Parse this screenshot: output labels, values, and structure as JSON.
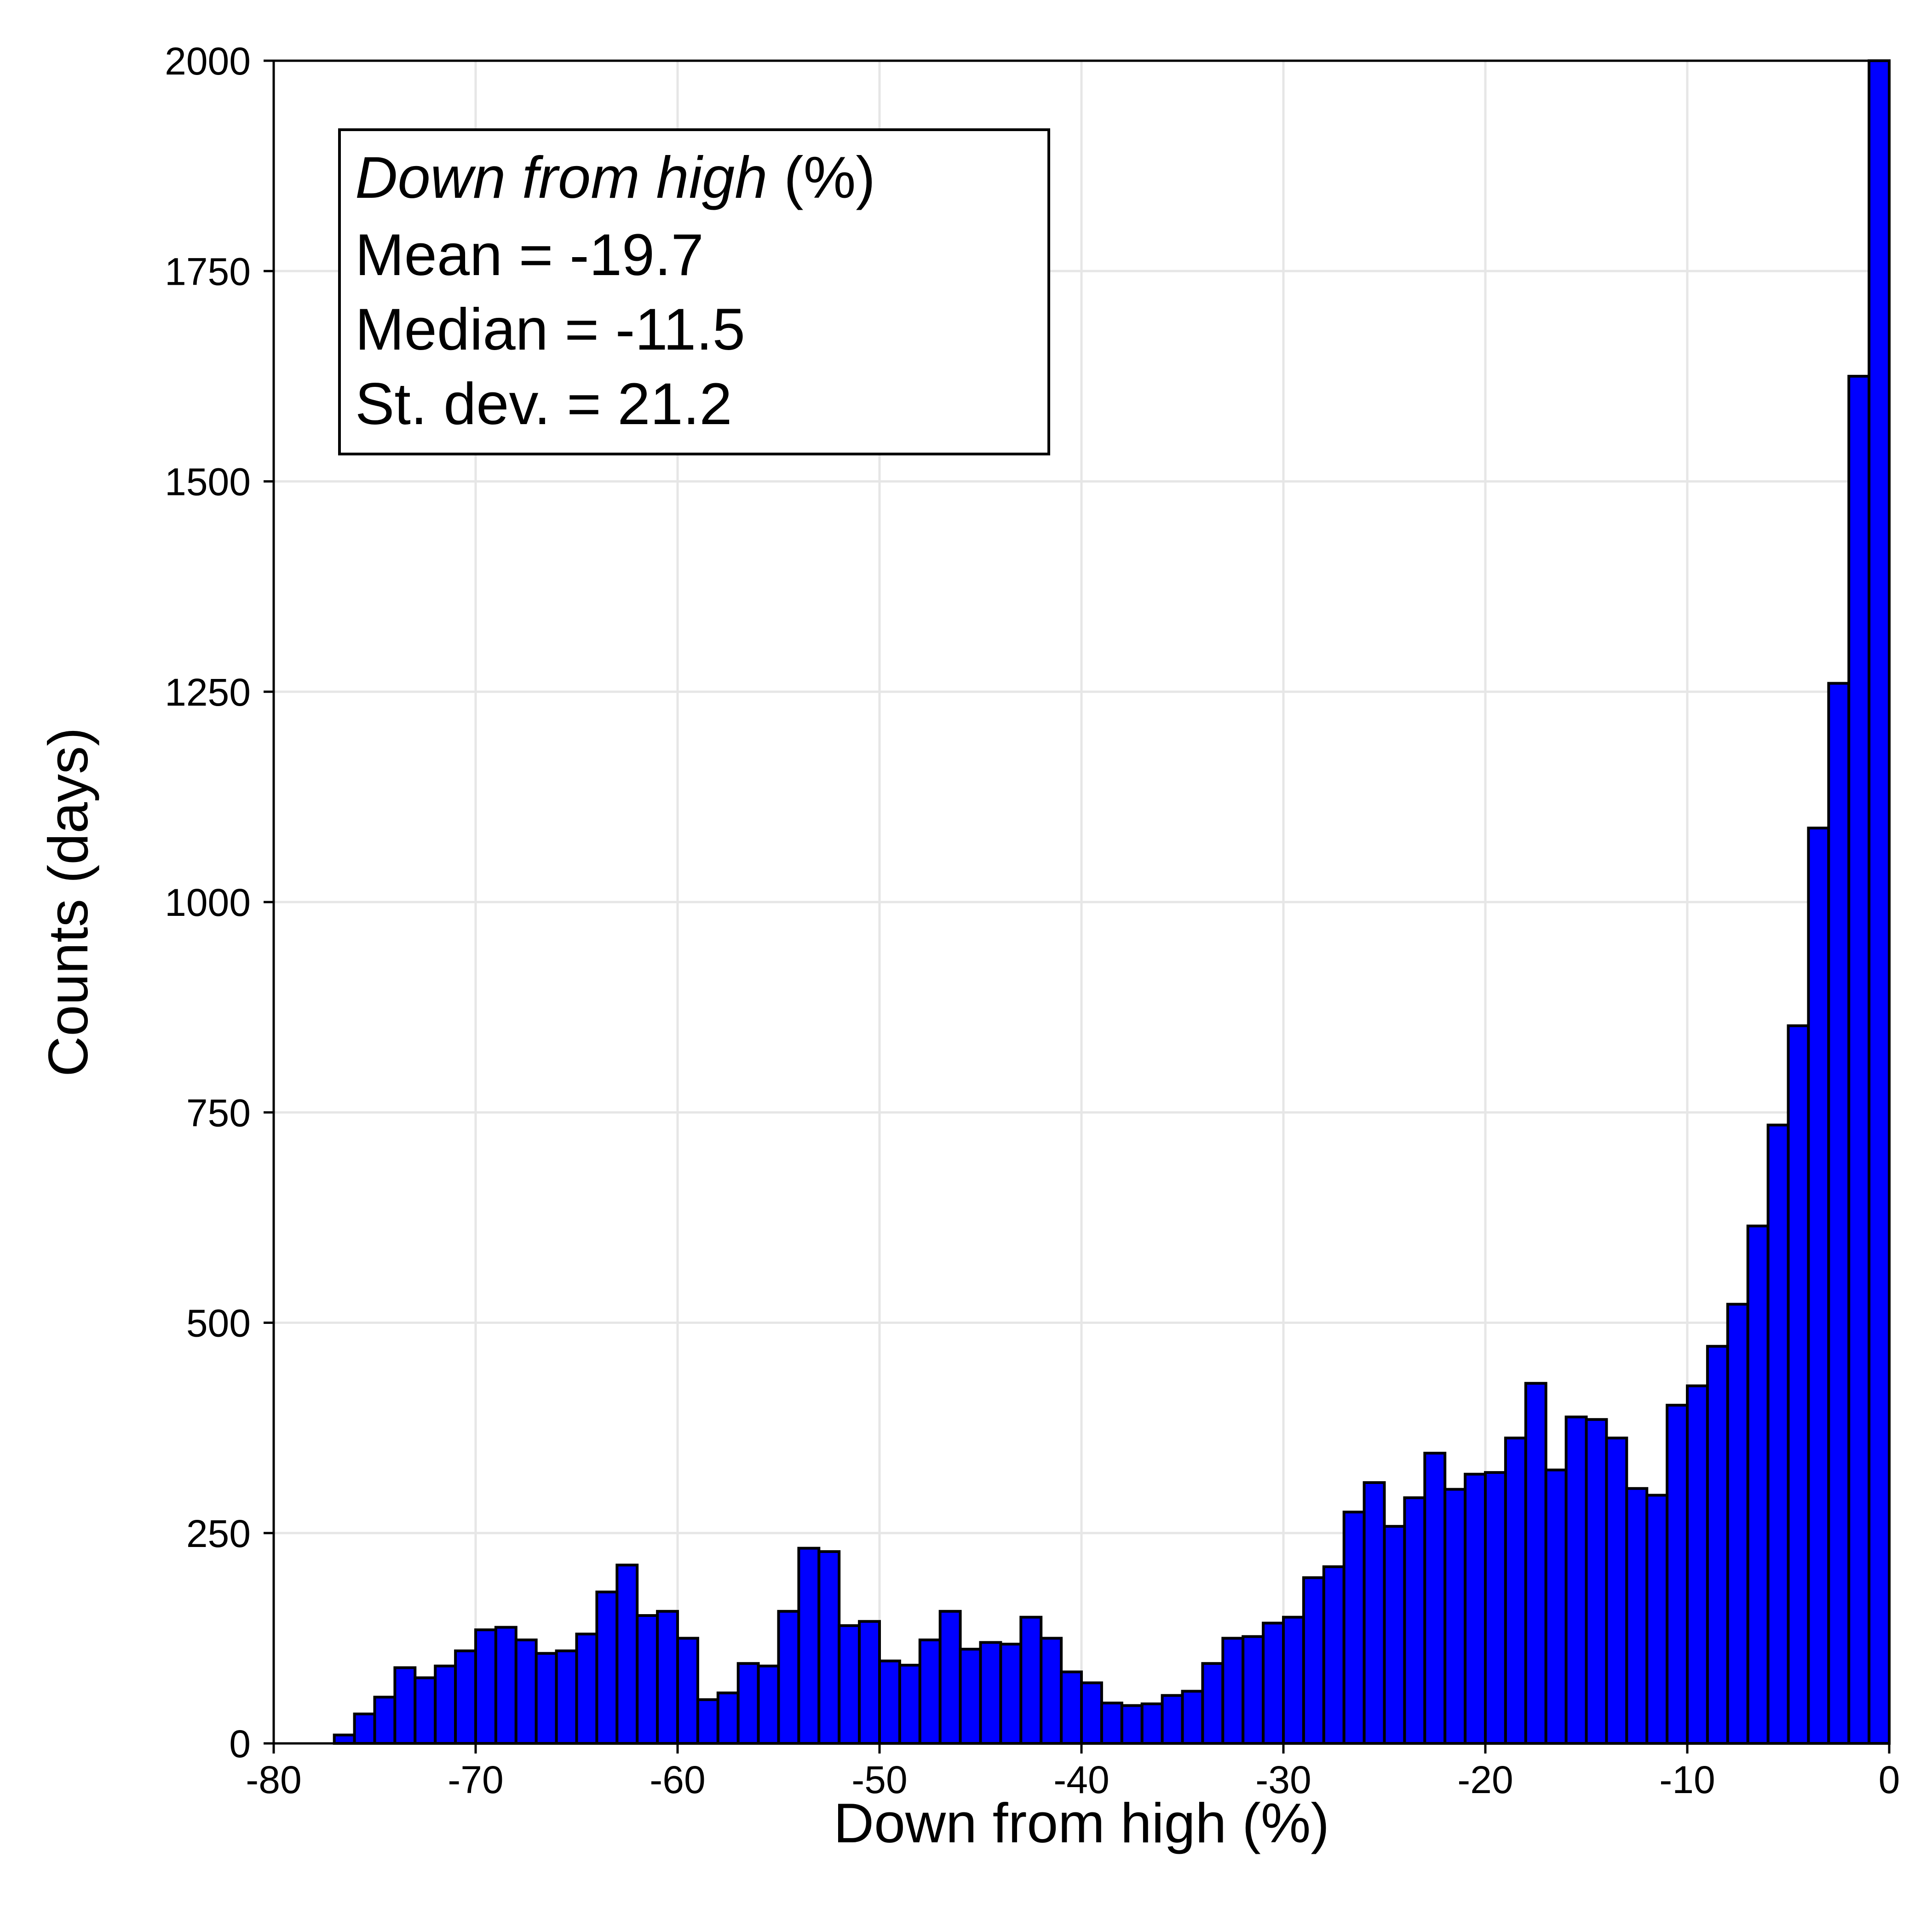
{
  "chart_data": {
    "type": "bar",
    "xlabel": "Down from high (%)",
    "ylabel": "Counts (days)",
    "xlim": [
      -80,
      0
    ],
    "ylim": [
      0,
      2000
    ],
    "x_ticks": [
      -80,
      -70,
      -60,
      -50,
      -40,
      -30,
      -20,
      -10,
      0
    ],
    "y_ticks": [
      0,
      250,
      500,
      750,
      1000,
      1250,
      1500,
      1750,
      2000
    ],
    "grid": true,
    "bar_color": "#0000ff",
    "bar_edge_color": "#000000",
    "bin_width": 1,
    "bin_edges_start": -77,
    "values": [
      10,
      35,
      55,
      90,
      78,
      92,
      110,
      135,
      138,
      123,
      107,
      110,
      130,
      180,
      212,
      152,
      157,
      125,
      52,
      60,
      95,
      92,
      157,
      232,
      228,
      140,
      145,
      98,
      93,
      123,
      157,
      112,
      120,
      118,
      150,
      125,
      85,
      72,
      48,
      45,
      47,
      57,
      62,
      95,
      125,
      127,
      143,
      150,
      197,
      210,
      275,
      310,
      258,
      292,
      345,
      302,
      320,
      322,
      363,
      428,
      325,
      388,
      385,
      363,
      303,
      295,
      402,
      425,
      472,
      522,
      615,
      735,
      853,
      1088,
      1260,
      1625,
      2000
    ],
    "stats_box": {
      "title_italic": "Down from high",
      "title_suffix": " (%)",
      "lines": [
        "Mean = -19.7",
        "Median = -11.5",
        "St. dev. = 21.2"
      ],
      "placement": "top-left"
    }
  }
}
